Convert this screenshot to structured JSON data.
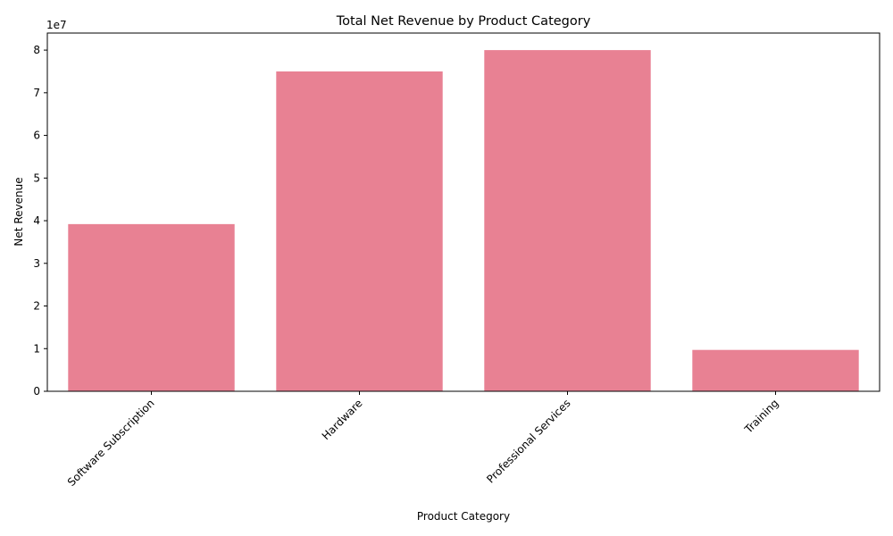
{
  "chart_data": {
    "type": "bar",
    "title": "Total Net Revenue by Product Category",
    "xlabel": "Product Category",
    "ylabel": "Net Revenue",
    "categories": [
      "Software Subscription",
      "Hardware",
      "Professional Services",
      "Training"
    ],
    "values": [
      39200000,
      75000000,
      80000000,
      9700000
    ],
    "ylim": [
      0,
      84000000
    ],
    "yticks": [
      0,
      1,
      2,
      3,
      4,
      5,
      6,
      7,
      8
    ],
    "ytick_multiplier": 10000000,
    "offset_text": "1e7",
    "bar_color": "#e88193",
    "grid": false,
    "xtick_rotation": 45
  }
}
